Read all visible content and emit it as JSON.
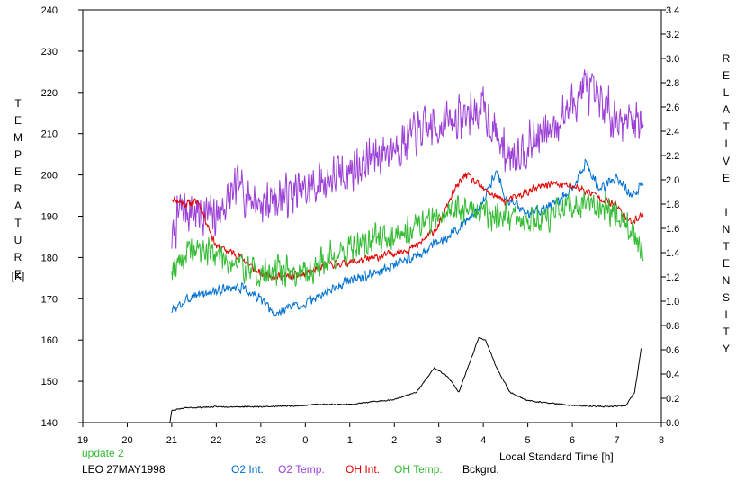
{
  "chart_data": {
    "type": "line",
    "left_axis_label": "TEMPERATURE",
    "left_axis_unit": "[K]",
    "right_axis_label": "RELATIVE INTENSITY",
    "xlabel": "Local Standard Time [h]",
    "x_ticks": [
      "19",
      "20",
      "21",
      "22",
      "23",
      "0",
      "1",
      "2",
      "3",
      "4",
      "5",
      "6",
      "7",
      "8"
    ],
    "x_range_hours": [
      19,
      32
    ],
    "temperature_ticks": [
      140,
      150,
      160,
      170,
      180,
      190,
      200,
      210,
      220,
      230,
      240
    ],
    "temperature_range": [
      140,
      240
    ],
    "intensity_ticks": [
      "0.0",
      "0.2",
      "0.4",
      "0.6",
      "0.8",
      "1.0",
      "1.2",
      "1.4",
      "1.6",
      "1.8",
      "2.0",
      "2.2",
      "2.4",
      "2.6",
      "2.8",
      "3.0",
      "3.2",
      "3.4"
    ],
    "intensity_range": [
      0,
      3.4
    ],
    "grid": false,
    "series": [
      {
        "name": "O2 Int.",
        "axis": "right",
        "color": "#0070d0",
        "noise": 0.05,
        "seed": 3,
        "x": [
          21.0,
          21.5,
          22.0,
          22.5,
          23.0,
          23.3,
          23.6,
          24.0,
          24.5,
          25.0,
          25.5,
          26.0,
          26.5,
          27.0,
          27.5,
          27.8,
          28.0,
          28.3,
          28.5,
          29.0,
          29.5,
          30.0,
          30.3,
          30.6,
          31.0,
          31.3,
          31.6
        ],
        "values": [
          0.92,
          1.05,
          1.08,
          1.12,
          1.02,
          0.88,
          0.95,
          0.98,
          1.08,
          1.18,
          1.22,
          1.3,
          1.38,
          1.48,
          1.62,
          1.72,
          1.82,
          2.1,
          1.85,
          1.72,
          1.78,
          1.92,
          2.15,
          1.92,
          2.02,
          1.88,
          1.95
        ]
      },
      {
        "name": "O2 Temp.",
        "axis": "left",
        "color": "#9b3fd6",
        "noise": 6.5,
        "seed": 7,
        "x": [
          21.0,
          21.2,
          21.5,
          22.0,
          22.5,
          23.0,
          23.5,
          24.0,
          24.5,
          25.0,
          25.5,
          26.0,
          26.5,
          27.0,
          27.5,
          28.0,
          28.2,
          28.5,
          29.0,
          29.5,
          30.0,
          30.3,
          30.5,
          31.0,
          31.3,
          31.6
        ],
        "values": [
          184,
          192,
          191,
          190,
          197,
          193,
          195,
          196,
          199,
          201,
          204,
          207,
          210,
          212,
          214,
          216,
          212,
          205,
          207,
          211,
          217,
          222,
          218,
          214,
          213,
          214
        ]
      },
      {
        "name": "OH Int.",
        "axis": "right",
        "color": "#e00000",
        "noise": 0.04,
        "seed": 11,
        "x": [
          21.0,
          21.3,
          21.6,
          22.0,
          22.5,
          23.0,
          23.5,
          24.0,
          24.5,
          25.0,
          25.5,
          26.0,
          26.5,
          27.0,
          27.3,
          27.6,
          28.0,
          28.5,
          29.0,
          29.5,
          30.0,
          30.5,
          31.0,
          31.3,
          31.6
        ],
        "values": [
          1.85,
          1.8,
          1.82,
          1.45,
          1.38,
          1.22,
          1.2,
          1.22,
          1.3,
          1.32,
          1.35,
          1.4,
          1.45,
          1.62,
          1.88,
          2.05,
          1.92,
          1.82,
          1.9,
          1.97,
          1.95,
          1.88,
          1.78,
          1.65,
          1.72
        ]
      },
      {
        "name": "OH Temp.",
        "axis": "left",
        "color": "#33bb33",
        "noise": 4.5,
        "seed": 19,
        "x": [
          21.0,
          21.5,
          22.0,
          22.5,
          23.0,
          23.5,
          24.0,
          24.5,
          25.0,
          25.5,
          26.0,
          26.5,
          27.0,
          27.5,
          28.0,
          28.5,
          29.0,
          29.5,
          30.0,
          30.5,
          31.0,
          31.3,
          31.6
        ],
        "values": [
          178,
          182,
          181,
          178,
          176,
          177,
          176,
          180,
          182,
          184,
          186,
          188,
          190,
          192,
          191,
          190,
          189,
          190,
          192,
          193,
          191,
          187,
          181
        ]
      },
      {
        "name": "Bckgrd.",
        "axis": "right",
        "color": "#000000",
        "noise": 0.006,
        "seed": 23,
        "x": [
          19.75,
          20.2,
          20.6,
          20.95,
          21.0,
          21.3,
          22.0,
          23.0,
          24.0,
          24.2,
          25.0,
          26.0,
          26.5,
          26.9,
          27.2,
          27.45,
          27.7,
          27.9,
          28.05,
          28.3,
          28.6,
          29.0,
          30.0,
          30.8,
          31.2,
          31.4,
          31.55
        ],
        "values": [
          -0.02,
          -0.02,
          -0.02,
          -0.02,
          0.1,
          0.12,
          0.13,
          0.13,
          0.14,
          0.15,
          0.15,
          0.19,
          0.25,
          0.45,
          0.38,
          0.25,
          0.5,
          0.7,
          0.68,
          0.45,
          0.25,
          0.18,
          0.14,
          0.13,
          0.14,
          0.25,
          0.62
        ]
      }
    ]
  },
  "footer": {
    "update_label": "update 2",
    "station_date": "LEO 27MAY1998",
    "legend": [
      {
        "label": "O2 Int.",
        "color": "#0070d0"
      },
      {
        "label": "O2 Temp.",
        "color": "#9b3fd6"
      },
      {
        "label": "OH Int.",
        "color": "#e00000"
      },
      {
        "label": "OH Temp.",
        "color": "#33bb33"
      },
      {
        "label": "Bckgrd.",
        "color": "#000000"
      }
    ]
  }
}
